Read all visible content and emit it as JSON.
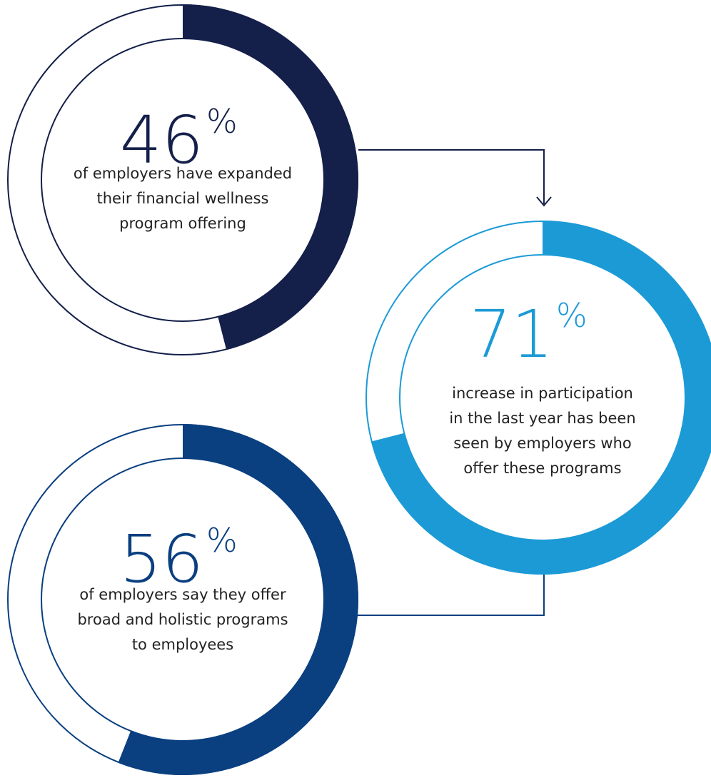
{
  "chart_data": [
    {
      "type": "gauge",
      "value": 46,
      "unit": "%",
      "ylim": [
        0,
        100
      ],
      "color": "#141f4a",
      "description": [
        "of employers have expanded",
        "their financial wellness",
        "program offering"
      ]
    },
    {
      "type": "gauge",
      "value": 71,
      "unit": "%",
      "ylim": [
        0,
        100
      ],
      "color": "#1b9ad6",
      "description": [
        "increase in participation",
        "in the last year has been",
        "seen by employers who",
        "offer these programs"
      ]
    },
    {
      "type": "gauge",
      "value": 56,
      "unit": "%",
      "ylim": [
        0,
        100
      ],
      "color": "#0a3f80",
      "description": [
        "of employers say they offer",
        "broad and holistic programs",
        "to employees"
      ]
    }
  ]
}
